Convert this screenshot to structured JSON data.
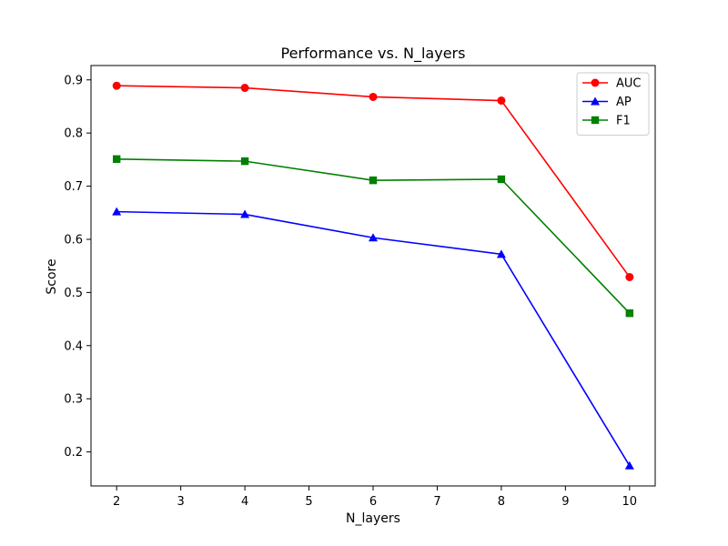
{
  "chart_data": {
    "type": "line",
    "title": "Performance vs. N_layers",
    "xlabel": "N_layers",
    "ylabel": "Score",
    "x": [
      2,
      4,
      6,
      8,
      10
    ],
    "xlim": [
      1.6,
      10.4
    ],
    "ylim": [
      0.136,
      0.927
    ],
    "xticks": [
      "2",
      "3",
      "4",
      "5",
      "6",
      "7",
      "8",
      "9",
      "10"
    ],
    "yticks": [
      "0.2",
      "0.3",
      "0.4",
      "0.5",
      "0.6",
      "0.7",
      "0.8",
      "0.9"
    ],
    "grid": false,
    "legend_position": "top-right",
    "series": [
      {
        "name": "AUC",
        "color": "#ff0000",
        "marker": "circle",
        "values": [
          0.889,
          0.885,
          0.868,
          0.861,
          0.529
        ]
      },
      {
        "name": "AP",
        "color": "#0000ff",
        "marker": "triangle",
        "values": [
          0.652,
          0.647,
          0.603,
          0.572,
          0.174
        ]
      },
      {
        "name": "F1",
        "color": "#008000",
        "marker": "square",
        "values": [
          0.751,
          0.747,
          0.711,
          0.713,
          0.461
        ]
      }
    ]
  }
}
